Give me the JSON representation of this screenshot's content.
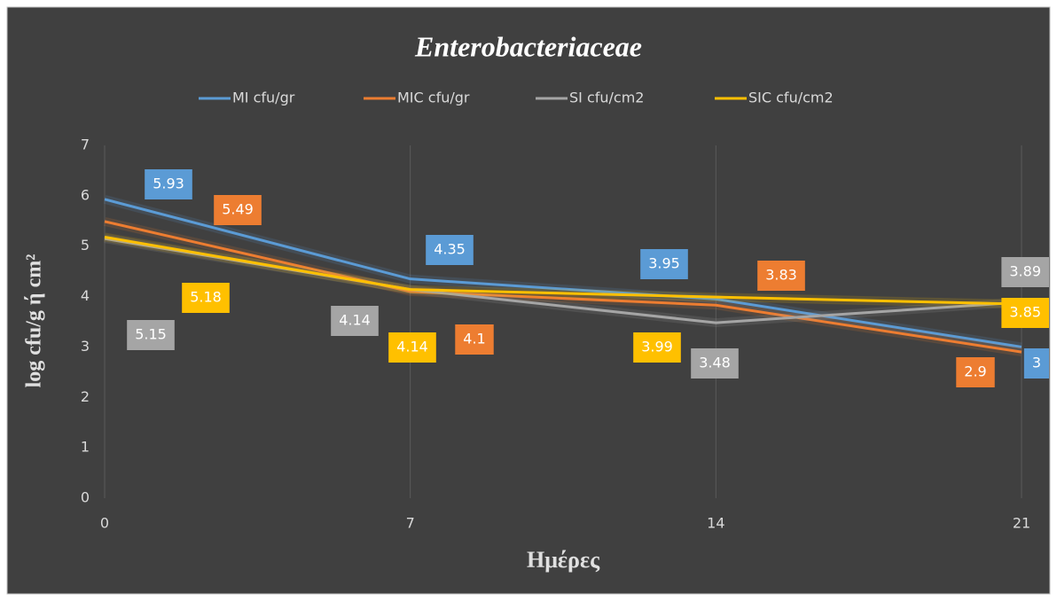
{
  "chart_data": {
    "type": "line",
    "title": "Enterobacteriaceae",
    "x_label": "Ημέρες",
    "y_label": "log cfu/g ή cm²",
    "x": [
      0,
      7,
      14,
      21
    ],
    "xlim": [
      0,
      21
    ],
    "xticks": [
      0,
      7,
      14,
      21
    ],
    "ylim": [
      0,
      7
    ],
    "yticks": [
      0,
      1,
      2,
      3,
      4,
      5,
      6,
      7
    ],
    "xgrid": true,
    "series": [
      {
        "name": "MI cfu/gr",
        "color": "#5b9bd5",
        "values": [
          5.93,
          4.35,
          3.95,
          3
        ]
      },
      {
        "name": "MIC cfu/gr",
        "color": "#ed7d31",
        "values": [
          5.49,
          4.1,
          3.83,
          2.9
        ]
      },
      {
        "name": "SI cfu/cm2",
        "color": "#a5a5a5",
        "values": [
          5.15,
          4.14,
          3.48,
          3.89
        ]
      },
      {
        "name": "SIC cfu/cm2",
        "color": "#ffc000",
        "values": [
          5.18,
          4.14,
          3.99,
          3.85
        ]
      }
    ]
  }
}
